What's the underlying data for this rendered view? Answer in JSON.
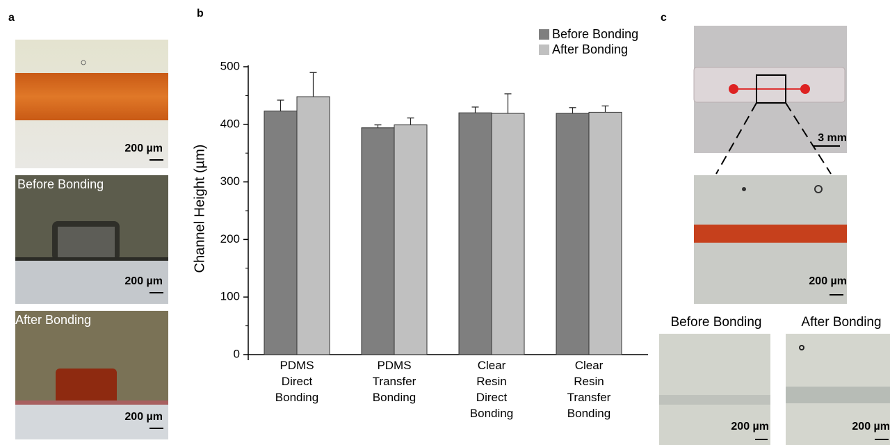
{
  "panels": {
    "a": {
      "label": "a",
      "images": [
        {
          "scale_bar": "200 µm"
        },
        {
          "caption": "Before Bonding",
          "scale_bar": "200 µm"
        },
        {
          "caption": "After Bonding",
          "scale_bar": "200 µm"
        }
      ]
    },
    "b": {
      "label": "b"
    },
    "c": {
      "label": "c",
      "overview_scale_bar": "3 mm",
      "zoom_scale_bar": "200 µm",
      "images": [
        {
          "caption": "Before Bonding",
          "scale_bar": "200 µm"
        },
        {
          "caption": "After Bonding",
          "scale_bar": "200 µm"
        }
      ]
    }
  },
  "chart_data": {
    "type": "bar",
    "y_label": "Channel Height (µm)",
    "categories": [
      "PDMS Direct Bonding",
      "PDMS Transfer Bonding",
      "Clear Resin Direct Bonding",
      "Clear Resin Transfer Bonding"
    ],
    "series": [
      {
        "name": "Before Bonding",
        "color": "#7f7f7f",
        "values": [
          423,
          394,
          420,
          419
        ],
        "errors": [
          19,
          5,
          10,
          10
        ]
      },
      {
        "name": "After Bonding",
        "color": "#c0c0c0",
        "values": [
          448,
          399,
          419,
          421
        ],
        "errors": [
          42,
          12,
          34,
          11
        ]
      }
    ],
    "ylim": [
      0,
      500
    ],
    "yticks": [
      0,
      100,
      200,
      300,
      400,
      500
    ],
    "minor_yticks": [
      50,
      150,
      250,
      350,
      450
    ],
    "legend": "upper right"
  }
}
